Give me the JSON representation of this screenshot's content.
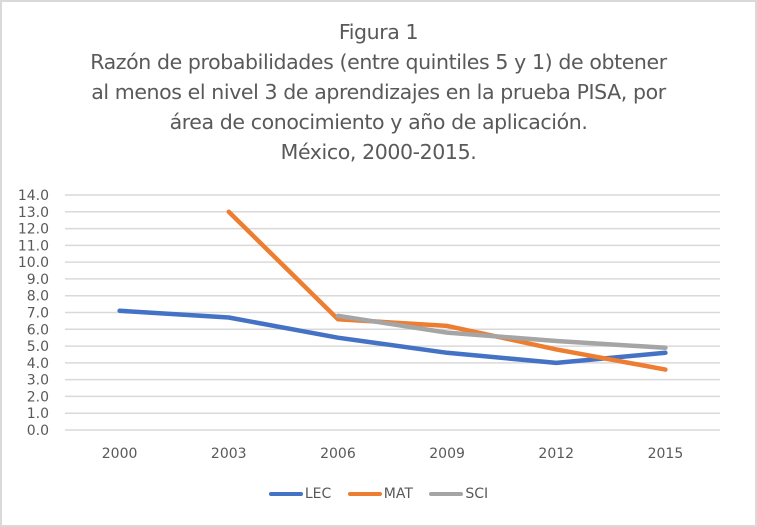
{
  "chart_data": {
    "type": "line",
    "title": "Figura 1",
    "subtitle": [
      "Razón de probabilidades (entre quintiles 5 y 1) de obtener",
      "al menos el nivel 3 de aprendizajes en la prueba PISA, por",
      "área de conocimiento y año de aplicación.",
      "México, 2000-2015."
    ],
    "xlabel": "",
    "ylabel": "",
    "categories": [
      "2000",
      "2003",
      "2006",
      "2009",
      "2012",
      "2015"
    ],
    "ylim": [
      0,
      14
    ],
    "yticks": [
      "0.0",
      "1.0",
      "2.0",
      "3.0",
      "4.0",
      "5.0",
      "6.0",
      "7.0",
      "8.0",
      "9.0",
      "10.0",
      "11.0",
      "12.0",
      "13.0",
      "14.0"
    ],
    "grid": true,
    "legend_position": "bottom",
    "series": [
      {
        "name": "LEC",
        "color": "#4472c4",
        "values": [
          7.1,
          6.7,
          5.5,
          4.6,
          4.0,
          4.6
        ]
      },
      {
        "name": "MAT",
        "color": "#ed7d31",
        "values": [
          null,
          13.0,
          6.6,
          6.2,
          4.8,
          3.6
        ]
      },
      {
        "name": "SCI",
        "color": "#a5a5a5",
        "values": [
          null,
          null,
          6.8,
          5.8,
          5.3,
          4.9
        ]
      }
    ]
  }
}
